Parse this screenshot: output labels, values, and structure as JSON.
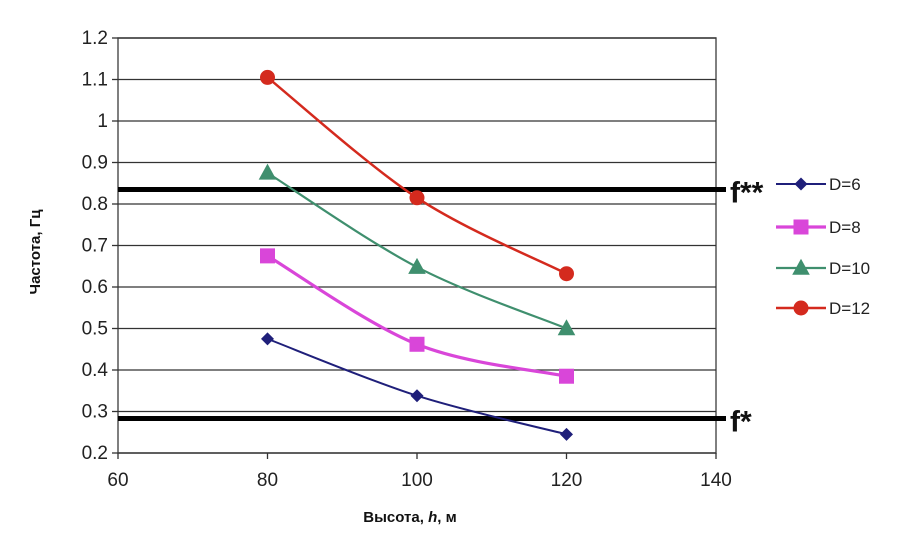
{
  "chart_data": {
    "type": "line",
    "x": [
      80,
      100,
      120
    ],
    "xlabel": "Высота, h, м",
    "ylabel": "Частота, Гц",
    "xlim": [
      60,
      140
    ],
    "ylim": [
      0.2,
      1.2
    ],
    "xticks": [
      "60",
      "80",
      "100",
      "120",
      "140"
    ],
    "yticks": [
      "0.2",
      "0.3",
      "0.4",
      "0.5",
      "0.6",
      "0.7",
      "0.8",
      "0.9",
      "1",
      "1.1",
      "1.2"
    ],
    "grid": "horizontal",
    "legend_position": "right",
    "series": [
      {
        "name": "D=6",
        "values": [
          0.475,
          0.338,
          0.245
        ],
        "color": "#1f1f7a",
        "marker": "diamond"
      },
      {
        "name": "D=8",
        "values": [
          0.675,
          0.462,
          0.385
        ],
        "color": "#d946d9",
        "marker": "square"
      },
      {
        "name": "D=10",
        "values": [
          0.875,
          0.648,
          0.5
        ],
        "color": "#3f8f6e",
        "marker": "triangle"
      },
      {
        "name": "D=12",
        "values": [
          1.105,
          0.815,
          0.632
        ],
        "color": "#d42a1e",
        "marker": "circle"
      }
    ],
    "reference_lines": [
      {
        "label": "f**",
        "value": 0.835
      },
      {
        "label": "f*",
        "value": 0.283
      }
    ]
  }
}
